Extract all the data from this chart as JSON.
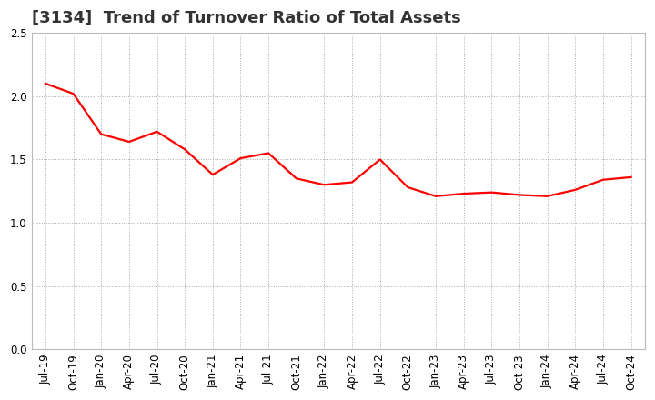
{
  "title": "[3134]  Trend of Turnover Ratio of Total Assets",
  "x_labels": [
    "Jul-19",
    "Oct-19",
    "Jan-20",
    "Apr-20",
    "Jul-20",
    "Oct-20",
    "Jan-21",
    "Apr-21",
    "Jul-21",
    "Oct-21",
    "Jan-22",
    "Apr-22",
    "Jul-22",
    "Oct-22",
    "Jan-23",
    "Apr-23",
    "Jul-23",
    "Oct-23",
    "Jan-24",
    "Apr-24",
    "Jul-24",
    "Oct-24"
  ],
  "values": [
    2.1,
    2.02,
    1.7,
    1.64,
    1.72,
    1.58,
    1.38,
    1.51,
    1.55,
    1.35,
    1.3,
    1.32,
    1.5,
    1.28,
    1.21,
    1.23,
    1.24,
    1.22,
    1.21,
    1.26,
    1.34,
    1.36
  ],
  "line_color": "#ff0000",
  "line_width": 1.6,
  "ylim": [
    0.0,
    2.5
  ],
  "yticks": [
    0.0,
    0.5,
    1.0,
    1.5,
    2.0,
    2.5
  ],
  "grid_color": "#aaaaaa",
  "grid_style": "dotted",
  "background_color": "#ffffff",
  "title_fontsize": 13,
  "tick_fontsize": 8.5,
  "title_color": "#333333"
}
